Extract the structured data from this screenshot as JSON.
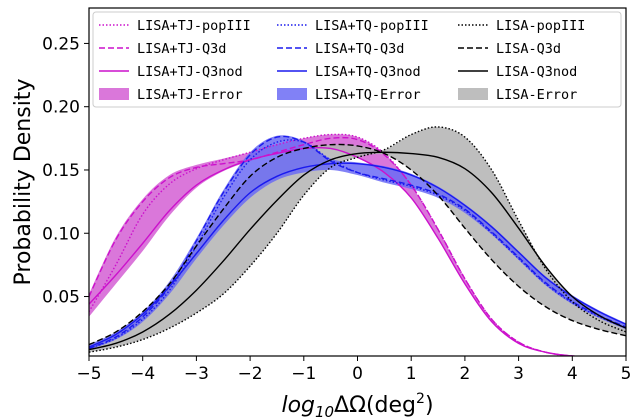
{
  "chart_data": {
    "type": "area",
    "xlabel": "log10ΔΩ(deg²)",
    "xlabel_parts": {
      "main": "log",
      "sub": "10",
      "delta": "ΔΩ(deg",
      "sup": "2",
      "close": ")"
    },
    "ylabel": "Probability Density",
    "xlim": [
      -5,
      5
    ],
    "ylim": [
      0.003,
      0.278
    ],
    "xticks": [
      -5,
      -4,
      -3,
      -2,
      -1,
      0,
      1,
      2,
      3,
      4,
      5
    ],
    "xtick_labels": [
      "−5",
      "−4",
      "−3",
      "−2",
      "−1",
      "0",
      "1",
      "2",
      "3",
      "4",
      "5"
    ],
    "yticks": [
      0.05,
      0.1,
      0.15,
      0.2,
      0.25
    ],
    "ytick_labels": [
      "0.05",
      "0.10",
      "0.15",
      "0.20",
      "0.25"
    ],
    "grid": false,
    "legend_position": "top",
    "x": [
      -5,
      -4.5,
      -4,
      -3.5,
      -3,
      -2.5,
      -2,
      -1.5,
      -1,
      -0.5,
      0,
      0.5,
      1,
      1.5,
      2,
      2.5,
      3,
      3.5,
      4,
      4.5,
      5
    ],
    "colors": {
      "tj": "#cc11cc",
      "tq": "#1a1aee",
      "lisa": "#000000"
    },
    "fill_colors": {
      "tj": "#d35fd3",
      "tq": "#6b6bf5",
      "lisa": "#b3b3b3"
    },
    "series": [
      {
        "name": "LISA+TJ-popIII",
        "group": "tj",
        "style": "dotted",
        "values": [
          0.038,
          0.075,
          0.115,
          0.139,
          0.151,
          0.158,
          0.164,
          0.17,
          0.175,
          0.178,
          0.176,
          0.163,
          0.138,
          0.103,
          0.064,
          0.032,
          0.014,
          0.006,
          0.003,
          0.002,
          0.001
        ]
      },
      {
        "name": "LISA+TJ-Q3d",
        "group": "tj",
        "style": "dashed",
        "values": [
          0.05,
          0.095,
          0.125,
          0.144,
          0.152,
          0.155,
          0.158,
          0.164,
          0.17,
          0.175,
          0.174,
          0.162,
          0.138,
          0.103,
          0.064,
          0.032,
          0.014,
          0.006,
          0.003,
          0.002,
          0.001
        ]
      },
      {
        "name": "LISA+TJ-Q3nod",
        "group": "tj",
        "style": "solid",
        "values": [
          0.044,
          0.067,
          0.092,
          0.118,
          0.138,
          0.15,
          0.158,
          0.163,
          0.167,
          0.167,
          0.16,
          0.148,
          0.128,
          0.096,
          0.06,
          0.03,
          0.013,
          0.006,
          0.003,
          0.002,
          0.001
        ]
      },
      {
        "name": "LISA+TQ-popIII",
        "group": "tq",
        "style": "dotted",
        "values": [
          0.009,
          0.017,
          0.032,
          0.055,
          0.09,
          0.128,
          0.158,
          0.172,
          0.172,
          0.158,
          0.148,
          0.142,
          0.137,
          0.13,
          0.118,
          0.1,
          0.08,
          0.06,
          0.045,
          0.034,
          0.025
        ]
      },
      {
        "name": "LISA+TQ-Q3d",
        "group": "tq",
        "style": "dashed",
        "values": [
          0.009,
          0.018,
          0.034,
          0.058,
          0.094,
          0.132,
          0.162,
          0.176,
          0.172,
          0.157,
          0.148,
          0.143,
          0.138,
          0.131,
          0.119,
          0.101,
          0.081,
          0.061,
          0.046,
          0.035,
          0.026
        ]
      },
      {
        "name": "LISA+TQ-Q3nod",
        "group": "tq",
        "style": "solid",
        "values": [
          0.01,
          0.02,
          0.036,
          0.058,
          0.084,
          0.11,
          0.132,
          0.145,
          0.152,
          0.155,
          0.155,
          0.152,
          0.146,
          0.136,
          0.122,
          0.105,
          0.085,
          0.065,
          0.05,
          0.038,
          0.028
        ]
      },
      {
        "name": "LISA-popIII",
        "group": "lisa",
        "style": "dotted",
        "values": [
          0.006,
          0.01,
          0.016,
          0.025,
          0.037,
          0.052,
          0.074,
          0.1,
          0.13,
          0.152,
          0.16,
          0.166,
          0.178,
          0.184,
          0.176,
          0.15,
          0.11,
          0.072,
          0.046,
          0.031,
          0.022
        ]
      },
      {
        "name": "LISA-Q3d",
        "group": "lisa",
        "style": "dashed",
        "values": [
          0.012,
          0.022,
          0.038,
          0.06,
          0.09,
          0.119,
          0.145,
          0.16,
          0.167,
          0.17,
          0.169,
          0.163,
          0.15,
          0.13,
          0.104,
          0.079,
          0.058,
          0.042,
          0.031,
          0.024,
          0.019
        ]
      },
      {
        "name": "LISA-Q3nod",
        "group": "lisa",
        "style": "solid",
        "values": [
          0.008,
          0.013,
          0.022,
          0.036,
          0.055,
          0.078,
          0.103,
          0.126,
          0.146,
          0.158,
          0.163,
          0.164,
          0.163,
          0.16,
          0.151,
          0.132,
          0.104,
          0.074,
          0.05,
          0.035,
          0.025
        ]
      }
    ],
    "bands": [
      {
        "name": "LISA+TJ-Error",
        "group": "tj",
        "lower": [
          0.034,
          0.06,
          0.086,
          0.114,
          0.136,
          0.149,
          0.157,
          0.163,
          0.167,
          0.167,
          0.16,
          0.148,
          0.128,
          0.096,
          0.06,
          0.03,
          0.013,
          0.006,
          0.003,
          0.002,
          0.001
        ],
        "upper": [
          0.052,
          0.097,
          0.127,
          0.146,
          0.154,
          0.159,
          0.164,
          0.17,
          0.175,
          0.178,
          0.176,
          0.163,
          0.138,
          0.103,
          0.064,
          0.032,
          0.014,
          0.006,
          0.003,
          0.002,
          0.001
        ]
      },
      {
        "name": "LISA+TQ-Error",
        "group": "tq",
        "lower": [
          0.008,
          0.016,
          0.03,
          0.052,
          0.08,
          0.106,
          0.128,
          0.142,
          0.148,
          0.15,
          0.146,
          0.14,
          0.135,
          0.128,
          0.116,
          0.099,
          0.079,
          0.059,
          0.044,
          0.033,
          0.024
        ],
        "upper": [
          0.012,
          0.022,
          0.038,
          0.062,
          0.096,
          0.134,
          0.164,
          0.177,
          0.173,
          0.159,
          0.156,
          0.153,
          0.147,
          0.137,
          0.123,
          0.106,
          0.086,
          0.066,
          0.051,
          0.039,
          0.029
        ]
      },
      {
        "name": "LISA-Error",
        "group": "lisa",
        "lower": [
          0.006,
          0.01,
          0.016,
          0.025,
          0.037,
          0.052,
          0.074,
          0.1,
          0.13,
          0.152,
          0.16,
          0.162,
          0.15,
          0.13,
          0.104,
          0.079,
          0.058,
          0.042,
          0.031,
          0.024,
          0.019
        ],
        "upper": [
          0.012,
          0.022,
          0.038,
          0.06,
          0.09,
          0.119,
          0.145,
          0.16,
          0.167,
          0.17,
          0.169,
          0.166,
          0.178,
          0.184,
          0.176,
          0.15,
          0.11,
          0.074,
          0.05,
          0.035,
          0.025
        ]
      }
    ],
    "legend": [
      [
        "LISA+TJ-popIII",
        "LISA+TJ-Q3d",
        "LISA+TJ-Q3nod",
        "LISA+TJ-Error"
      ],
      [
        "LISA+TQ-popIII",
        "LISA+TQ-Q3d",
        "LISA+TQ-Q3nod",
        "LISA+TQ-Error"
      ],
      [
        "LISA-popIII",
        "LISA-Q3d",
        "LISA-Q3nod",
        "LISA-Error"
      ]
    ]
  }
}
